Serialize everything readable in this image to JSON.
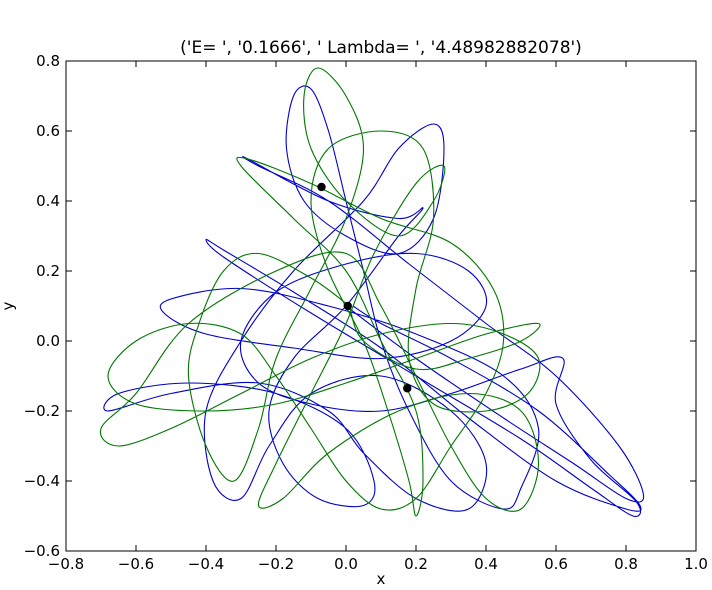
{
  "chart_data": {
    "type": "line",
    "title": "('E= ', '0.1666', ' Lambda= ', '4.48982882078')",
    "xlabel": "x",
    "ylabel": "y",
    "xlim": [
      -0.8,
      1.0
    ],
    "ylim": [
      -0.6,
      0.8
    ],
    "x_ticks": [
      -0.8,
      -0.6,
      -0.4,
      -0.2,
      0.0,
      0.2,
      0.4,
      0.6,
      0.8,
      1.0
    ],
    "x_tick_labels": [
      "−0.8",
      "−0.6",
      "−0.4",
      "−0.2",
      "0.0",
      "0.2",
      "0.4",
      "0.6",
      "0.8",
      "1.0"
    ],
    "y_ticks": [
      -0.6,
      -0.4,
      -0.2,
      0.0,
      0.2,
      0.4,
      0.6,
      0.8
    ],
    "y_tick_labels": [
      "−0.6",
      "−0.4",
      "−0.2",
      "0.0",
      "0.2",
      "0.4",
      "0.6",
      "0.8"
    ],
    "grid": false,
    "legend": "none",
    "series": [
      {
        "color": "#0000cc",
        "points": [
          [
            0.02,
            0.1
          ],
          [
            0.1,
            0.05
          ],
          [
            0.3,
            -0.05
          ],
          [
            0.55,
            -0.2
          ],
          [
            0.75,
            -0.38
          ],
          [
            0.84,
            -0.47
          ],
          [
            0.8,
            -0.48
          ],
          [
            0.6,
            -0.4
          ],
          [
            0.35,
            -0.22
          ],
          [
            0.1,
            -0.02
          ],
          [
            -0.15,
            0.14
          ],
          [
            -0.35,
            0.26
          ],
          [
            -0.4,
            0.29
          ],
          [
            -0.35,
            0.24
          ],
          [
            -0.1,
            0.08
          ],
          [
            0.2,
            -0.1
          ],
          [
            0.5,
            -0.28
          ],
          [
            0.7,
            -0.42
          ],
          [
            0.82,
            -0.5
          ],
          [
            0.83,
            -0.46
          ],
          [
            0.7,
            -0.34
          ],
          [
            0.6,
            -0.18
          ],
          [
            0.62,
            -0.05
          ],
          [
            0.5,
            -0.08
          ],
          [
            0.3,
            -0.15
          ],
          [
            0.1,
            -0.2
          ],
          [
            -0.1,
            -0.18
          ],
          [
            -0.25,
            -0.12
          ],
          [
            -0.3,
            0.0
          ],
          [
            -0.2,
            0.14
          ],
          [
            0.0,
            0.22
          ],
          [
            0.2,
            0.25
          ],
          [
            0.35,
            0.2
          ],
          [
            0.4,
            0.1
          ],
          [
            0.3,
            0.0
          ],
          [
            0.1,
            -0.05
          ],
          [
            -0.15,
            -0.02
          ],
          [
            -0.4,
            0.02
          ],
          [
            -0.52,
            0.08
          ],
          [
            -0.5,
            0.12
          ],
          [
            -0.3,
            0.15
          ],
          [
            -0.05,
            0.1
          ],
          [
            0.2,
            0.02
          ],
          [
            0.45,
            -0.1
          ],
          [
            0.55,
            -0.25
          ],
          [
            0.5,
            -0.42
          ],
          [
            0.45,
            -0.48
          ],
          [
            0.3,
            -0.4
          ],
          [
            0.18,
            -0.2
          ],
          [
            0.1,
            0.0
          ],
          [
            0.05,
            0.2
          ],
          [
            0.0,
            0.4
          ],
          [
            -0.05,
            0.6
          ],
          [
            -0.1,
            0.72
          ],
          [
            -0.15,
            0.7
          ],
          [
            -0.17,
            0.55
          ],
          [
            -0.12,
            0.4
          ],
          [
            0.0,
            0.3
          ],
          [
            0.15,
            0.25
          ],
          [
            0.25,
            0.35
          ],
          [
            0.28,
            0.55
          ],
          [
            0.25,
            0.62
          ],
          [
            0.15,
            0.55
          ],
          [
            0.05,
            0.4
          ],
          [
            -0.15,
            0.2
          ],
          [
            -0.3,
            0.0
          ],
          [
            -0.4,
            -0.2
          ],
          [
            -0.38,
            -0.4
          ],
          [
            -0.3,
            -0.45
          ],
          [
            -0.22,
            -0.3
          ],
          [
            -0.1,
            -0.15
          ],
          [
            0.1,
            -0.1
          ],
          [
            0.3,
            -0.2
          ],
          [
            0.4,
            -0.35
          ],
          [
            0.35,
            -0.48
          ],
          [
            0.2,
            -0.45
          ],
          [
            0.05,
            -0.32
          ],
          [
            -0.05,
            -0.2
          ],
          [
            -0.25,
            -0.12
          ],
          [
            -0.5,
            -0.15
          ],
          [
            -0.68,
            -0.2
          ],
          [
            -0.65,
            -0.15
          ],
          [
            -0.45,
            -0.12
          ],
          [
            -0.2,
            -0.15
          ],
          [
            0.0,
            -0.25
          ],
          [
            0.08,
            -0.4
          ],
          [
            0.05,
            -0.47
          ],
          [
            -0.08,
            -0.45
          ],
          [
            -0.18,
            -0.35
          ],
          [
            -0.22,
            -0.2
          ],
          [
            -0.15,
            -0.05
          ],
          [
            0.0,
            0.1
          ],
          [
            0.15,
            0.3
          ],
          [
            0.22,
            0.38
          ],
          [
            0.15,
            0.35
          ],
          [
            -0.05,
            0.4
          ],
          [
            -0.28,
            0.52
          ],
          [
            -0.25,
            0.5
          ],
          [
            -0.05,
            0.4
          ],
          [
            0.18,
            0.22
          ],
          [
            0.4,
            0.05
          ],
          [
            0.6,
            -0.1
          ],
          [
            0.78,
            -0.3
          ],
          [
            0.85,
            -0.44
          ],
          [
            0.8,
            -0.45
          ],
          [
            0.65,
            -0.35
          ],
          [
            0.45,
            -0.22
          ],
          [
            0.2,
            -0.05
          ],
          [
            0.0,
            0.1
          ]
        ]
      },
      {
        "color": "#007700",
        "points": [
          [
            0.01,
            0.1
          ],
          [
            -0.1,
            0.18
          ],
          [
            -0.25,
            0.25
          ],
          [
            -0.35,
            0.2
          ],
          [
            -0.42,
            0.05
          ],
          [
            -0.45,
            -0.1
          ],
          [
            -0.4,
            -0.3
          ],
          [
            -0.32,
            -0.4
          ],
          [
            -0.25,
            -0.25
          ],
          [
            -0.2,
            -0.05
          ],
          [
            -0.1,
            0.15
          ],
          [
            0.0,
            0.35
          ],
          [
            0.05,
            0.55
          ],
          [
            0.0,
            0.7
          ],
          [
            -0.08,
            0.78
          ],
          [
            -0.12,
            0.7
          ],
          [
            -0.1,
            0.55
          ],
          [
            0.0,
            0.4
          ],
          [
            0.15,
            0.3
          ],
          [
            0.25,
            0.4
          ],
          [
            0.28,
            0.5
          ],
          [
            0.2,
            0.45
          ],
          [
            0.08,
            0.25
          ],
          [
            0.0,
            0.05
          ],
          [
            -0.1,
            -0.15
          ],
          [
            -0.2,
            -0.35
          ],
          [
            -0.25,
            -0.47
          ],
          [
            -0.18,
            -0.45
          ],
          [
            -0.05,
            -0.32
          ],
          [
            0.15,
            -0.2
          ],
          [
            0.35,
            -0.15
          ],
          [
            0.5,
            -0.2
          ],
          [
            0.55,
            -0.35
          ],
          [
            0.5,
            -0.48
          ],
          [
            0.4,
            -0.45
          ],
          [
            0.3,
            -0.3
          ],
          [
            0.2,
            -0.1
          ],
          [
            0.1,
            0.1
          ],
          [
            0.0,
            0.25
          ],
          [
            -0.2,
            0.2
          ],
          [
            -0.45,
            0.05
          ],
          [
            -0.6,
            -0.15
          ],
          [
            -0.7,
            -0.25
          ],
          [
            -0.65,
            -0.3
          ],
          [
            -0.5,
            -0.25
          ],
          [
            -0.3,
            -0.15
          ],
          [
            -0.1,
            -0.05
          ],
          [
            0.1,
            0.02
          ],
          [
            0.3,
            0.05
          ],
          [
            0.45,
            0.02
          ],
          [
            0.55,
            -0.05
          ],
          [
            0.52,
            -0.15
          ],
          [
            0.4,
            -0.2
          ],
          [
            0.25,
            -0.18
          ],
          [
            0.18,
            -0.05
          ],
          [
            0.2,
            0.15
          ],
          [
            0.25,
            0.35
          ],
          [
            0.22,
            0.55
          ],
          [
            0.1,
            0.6
          ],
          [
            -0.05,
            0.55
          ],
          [
            -0.1,
            0.4
          ],
          [
            -0.05,
            0.2
          ],
          [
            0.05,
            0.0
          ],
          [
            0.12,
            -0.2
          ],
          [
            0.18,
            -0.4
          ],
          [
            0.2,
            -0.5
          ],
          [
            0.22,
            -0.4
          ],
          [
            0.2,
            -0.2
          ],
          [
            0.1,
            0.0
          ],
          [
            0.0,
            0.2
          ],
          [
            -0.15,
            0.35
          ],
          [
            -0.3,
            0.5
          ],
          [
            -0.28,
            0.52
          ],
          [
            -0.1,
            0.45
          ],
          [
            0.1,
            0.35
          ],
          [
            0.3,
            0.28
          ],
          [
            0.42,
            0.15
          ],
          [
            0.45,
            0.0
          ],
          [
            0.4,
            -0.15
          ],
          [
            0.3,
            -0.3
          ],
          [
            0.2,
            -0.45
          ],
          [
            0.1,
            -0.48
          ],
          [
            0.0,
            -0.4
          ],
          [
            -0.1,
            -0.25
          ],
          [
            -0.2,
            -0.1
          ],
          [
            -0.3,
            0.02
          ],
          [
            -0.45,
            0.05
          ],
          [
            -0.6,
            0.0
          ],
          [
            -0.68,
            -0.1
          ],
          [
            -0.6,
            -0.18
          ],
          [
            -0.4,
            -0.2
          ],
          [
            -0.2,
            -0.18
          ],
          [
            0.0,
            -0.12
          ],
          [
            0.2,
            -0.05
          ],
          [
            0.4,
            0.02
          ],
          [
            0.55,
            0.05
          ],
          [
            0.5,
            0.0
          ],
          [
            0.35,
            -0.05
          ],
          [
            0.2,
            -0.08
          ],
          [
            0.05,
            0.0
          ],
          [
            0.01,
            0.1
          ]
        ]
      }
    ],
    "markers": [
      {
        "x": -0.07,
        "y": 0.44,
        "color": "#000000"
      },
      {
        "x": 0.005,
        "y": 0.1,
        "color": "#000000"
      },
      {
        "x": 0.175,
        "y": -0.135,
        "color": "#000000"
      }
    ]
  }
}
